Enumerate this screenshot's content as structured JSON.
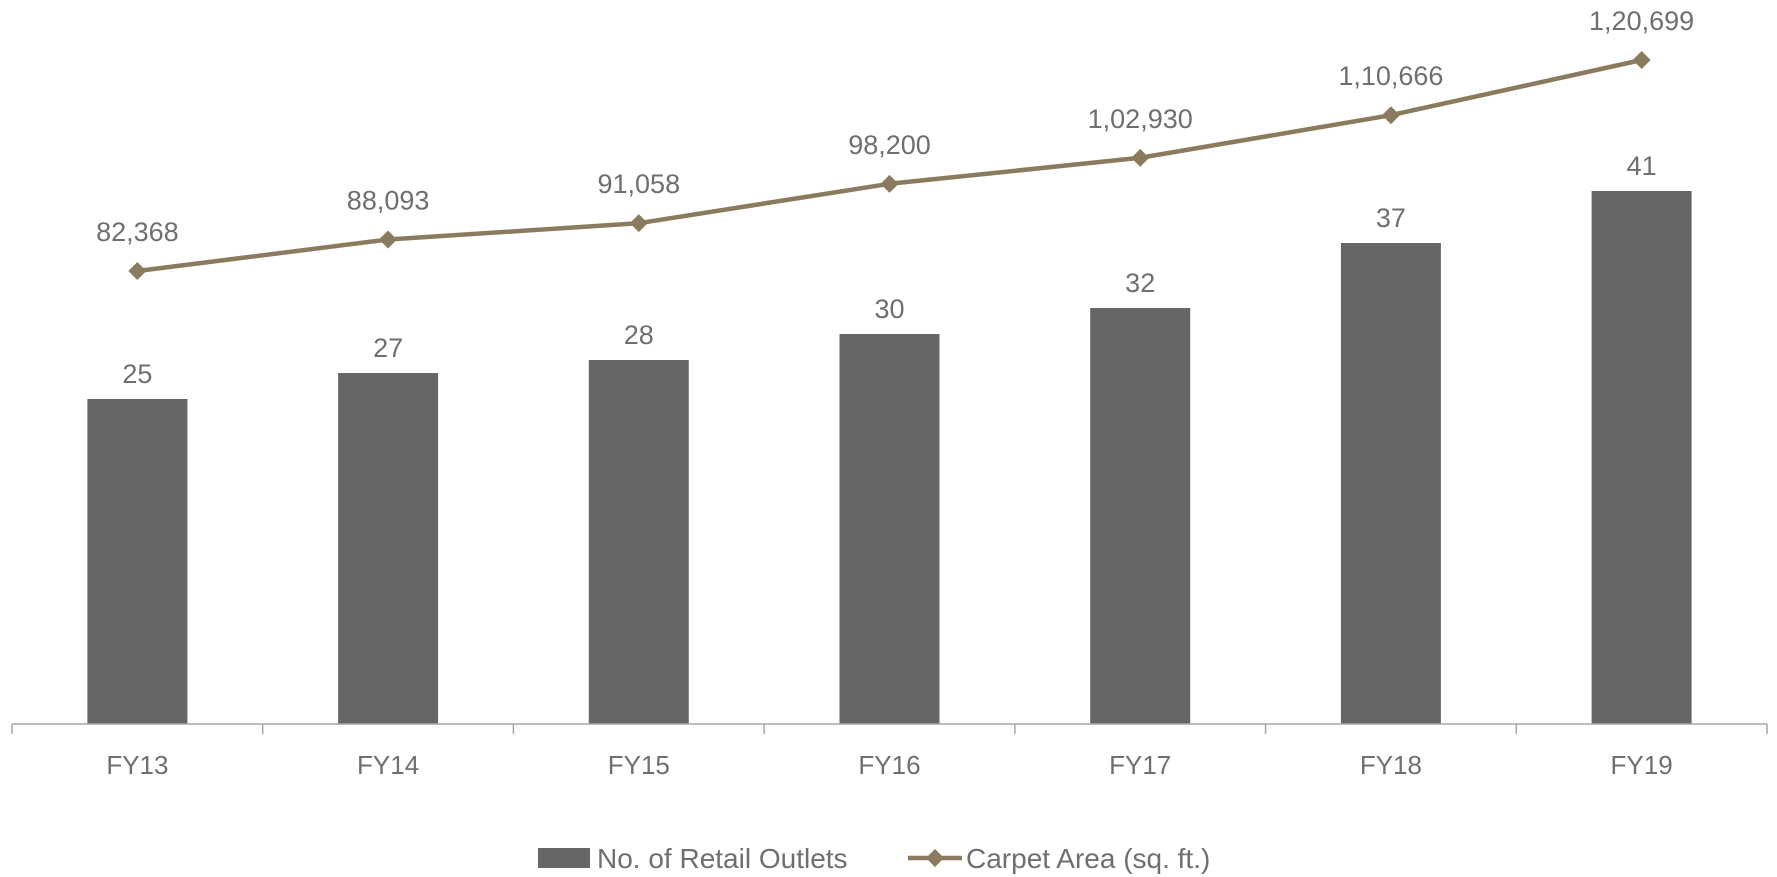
{
  "chart_data": {
    "type": "bar",
    "categories": [
      "FY13",
      "FY14",
      "FY15",
      "FY16",
      "FY17",
      "FY18",
      "FY19"
    ],
    "series": [
      {
        "name": "No. of Retail Outlets",
        "type": "bar",
        "axis": "primary",
        "color": "#666666",
        "values": [
          25,
          27,
          28,
          30,
          32,
          37,
          41
        ],
        "labels": [
          "25",
          "27",
          "28",
          "30",
          "32",
          "37",
          "41"
        ]
      },
      {
        "name": "Carpet Area (sq. ft.)",
        "type": "line",
        "axis": "secondary",
        "marker": "diamond",
        "color": "#8b7b5e",
        "values": [
          82368,
          88093,
          91058,
          98200,
          102930,
          110666,
          120699
        ],
        "labels": [
          "82,368",
          "88,093",
          "91,058",
          "98,200",
          "1,02,930",
          "1,10,666",
          "1,20,699"
        ]
      }
    ],
    "ylim_primary": [
      0,
      41
    ],
    "ylim_secondary": [
      0,
      120699
    ],
    "grid": false,
    "legend": "bottom-center"
  }
}
